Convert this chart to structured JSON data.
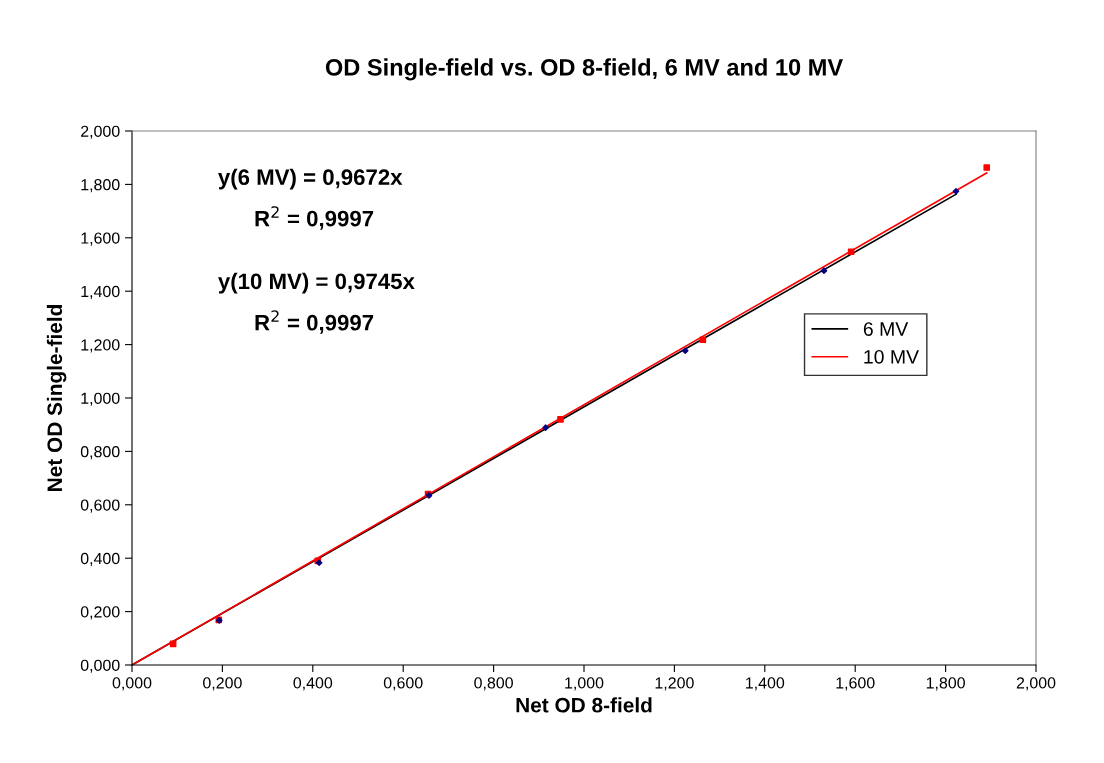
{
  "chart_data": {
    "type": "scatter",
    "title": "OD Single-field vs. OD 8-field, 6 MV and 10 MV",
    "xlabel": "Net OD 8-field",
    "ylabel": "Net OD Single-field",
    "annotations": [
      "y(6 MV) = 0,9672x",
      "R$^{2}$ = 0,9997",
      "y(10 MV) = 0,9745x",
      "R$^{2}$ = 0,9997"
    ],
    "series": [
      {
        "color": "#000080",
        "marker": "diamond",
        "x": [
          0.193,
          0.414,
          0.657,
          0.915,
          1.224,
          1.531,
          1.823
        ],
        "values": [
          0.167,
          0.383,
          0.635,
          0.889,
          1.177,
          1.477,
          1.774
        ]
      },
      {
        "color": "#ff0000",
        "marker": "square",
        "x": [
          0.091,
          0.192,
          0.411,
          0.655,
          0.948,
          1.263,
          1.591,
          1.891
        ],
        "values": [
          0.079,
          0.169,
          0.39,
          0.64,
          0.92,
          1.218,
          1.548,
          1.863
        ]
      },
      {
        "type": "line",
        "name": "6 MV",
        "color": "#000000",
        "x": [
          0,
          1.823
        ],
        "values": [
          0,
          1.763
        ]
      },
      {
        "type": "line",
        "name": "10 MV",
        "color": "#ff0000",
        "x": [
          0,
          1.891
        ],
        "values": [
          0,
          1.843
        ]
      }
    ],
    "xlim": [
      0,
      2
    ],
    "ylim": [
      0,
      2
    ],
    "xticks": [
      {
        "value": 0,
        "label": "0,000"
      },
      {
        "value": 0.2,
        "label": "0,200"
      },
      {
        "value": 0.4,
        "label": "0,400"
      },
      {
        "value": 0.6,
        "label": "0,600"
      },
      {
        "value": 0.8,
        "label": "0,800"
      },
      {
        "value": 1,
        "label": "1,000"
      },
      {
        "value": 1.2,
        "label": "1,200"
      },
      {
        "value": 1.4,
        "label": "1,400"
      },
      {
        "value": 1.6,
        "label": "1,600"
      },
      {
        "value": 1.8,
        "label": "1,800"
      },
      {
        "value": 2,
        "label": "2,000"
      }
    ],
    "yticks": [
      {
        "value": 0,
        "label": "0,000"
      },
      {
        "value": 0.2,
        "label": "0,200"
      },
      {
        "value": 0.4,
        "label": "0,400"
      },
      {
        "value": 0.6,
        "label": "0,600"
      },
      {
        "value": 0.8,
        "label": "0,800"
      },
      {
        "value": 1,
        "label": "1,000"
      },
      {
        "value": 1.2,
        "label": "1,200"
      },
      {
        "value": 1.4,
        "label": "1,400"
      },
      {
        "value": 1.6,
        "label": "1,600"
      },
      {
        "value": 1.8,
        "label": "1,800"
      },
      {
        "value": 2,
        "label": "2,000"
      }
    ],
    "grid": false,
    "legend": "right"
  }
}
